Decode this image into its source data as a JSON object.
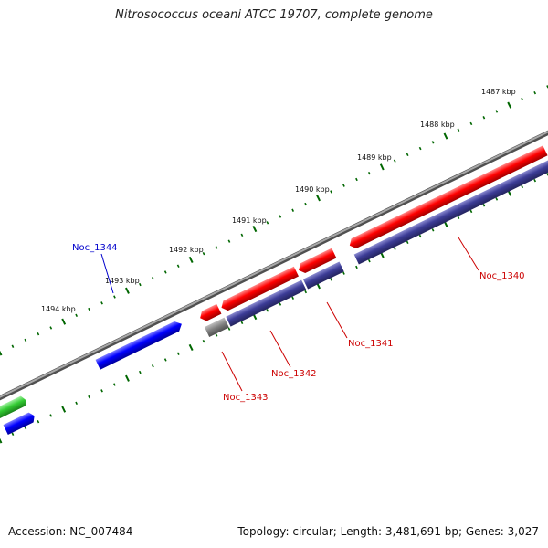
{
  "title": "Nitrosococcus oceani ATCC 19707, complete genome",
  "footer": {
    "accession": "Accession: NC_007484",
    "topology": "Topology: circular; Length: 3,481,691 bp; Genes: 3,027"
  },
  "kbp_labels": [
    "1487 kbp",
    "1488 kbp",
    "1489 kbp",
    "1490 kbp",
    "1491 kbp",
    "1492 kbp",
    "1493 kbp",
    "1494 kbp"
  ],
  "gene_labels": [
    {
      "text": "Noc_1344",
      "color": "#0000cc"
    },
    {
      "text": "Noc_1340",
      "color": "#cc0000"
    },
    {
      "text": "Noc_1341",
      "color": "#cc0000"
    },
    {
      "text": "Noc_1342",
      "color": "#cc0000"
    },
    {
      "text": "Noc_1343",
      "color": "#cc0000"
    }
  ],
  "colors": {
    "backbone": "#7f7f7f",
    "forward_cds": "#0000ff",
    "reverse_cds": "#ff0000",
    "feature": "#3c3c96",
    "green_feature": "#33cc33",
    "tick": "#006600"
  }
}
